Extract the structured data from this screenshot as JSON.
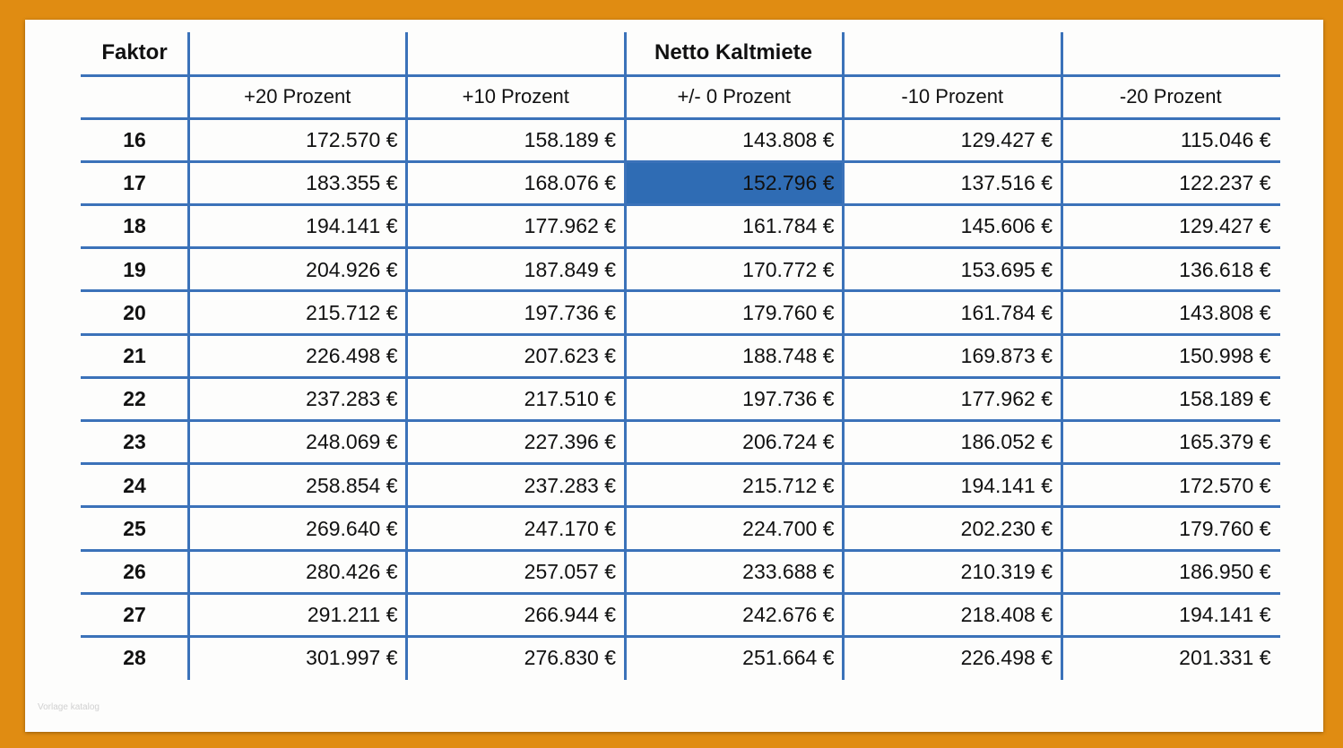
{
  "table": {
    "header_left": "Faktor",
    "header_title": "Netto Kaltmiete",
    "subheaders": [
      "+20 Prozent",
      "+10 Prozent",
      "+/- 0 Prozent",
      "-10 Prozent",
      "-20 Prozent"
    ],
    "rows": [
      {
        "faktor": "16",
        "values": [
          "172.570 €",
          "158.189 €",
          "143.808 €",
          "129.427 €",
          "115.046 €"
        ]
      },
      {
        "faktor": "17",
        "values": [
          "183.355 €",
          "168.076 €",
          "152.796 €",
          "137.516 €",
          "122.237 €"
        ]
      },
      {
        "faktor": "18",
        "values": [
          "194.141 €",
          "177.962 €",
          "161.784 €",
          "145.606 €",
          "129.427 €"
        ]
      },
      {
        "faktor": "19",
        "values": [
          "204.926 €",
          "187.849 €",
          "170.772 €",
          "153.695 €",
          "136.618 €"
        ]
      },
      {
        "faktor": "20",
        "values": [
          "215.712 €",
          "197.736 €",
          "179.760 €",
          "161.784 €",
          "143.808 €"
        ]
      },
      {
        "faktor": "21",
        "values": [
          "226.498 €",
          "207.623 €",
          "188.748 €",
          "169.873 €",
          "150.998 €"
        ]
      },
      {
        "faktor": "22",
        "values": [
          "237.283 €",
          "217.510 €",
          "197.736 €",
          "177.962 €",
          "158.189 €"
        ]
      },
      {
        "faktor": "23",
        "values": [
          "248.069 €",
          "227.396 €",
          "206.724 €",
          "186.052 €",
          "165.379 €"
        ]
      },
      {
        "faktor": "24",
        "values": [
          "258.854 €",
          "237.283 €",
          "215.712 €",
          "194.141 €",
          "172.570 €"
        ]
      },
      {
        "faktor": "25",
        "values": [
          "269.640 €",
          "247.170 €",
          "224.700 €",
          "202.230 €",
          "179.760 €"
        ]
      },
      {
        "faktor": "26",
        "values": [
          "280.426 €",
          "257.057 €",
          "233.688 €",
          "210.319 €",
          "186.950 €"
        ]
      },
      {
        "faktor": "27",
        "values": [
          "291.211 €",
          "266.944 €",
          "242.676 €",
          "218.408 €",
          "194.141 €"
        ]
      },
      {
        "faktor": "28",
        "values": [
          "301.997 €",
          "276.830 €",
          "251.664 €",
          "226.498 €",
          "201.331 €"
        ]
      }
    ],
    "highlighted_cell": {
      "row_faktor": "17",
      "column": "+/- 0 Prozent"
    }
  },
  "colors": {
    "frame": "#e08c12",
    "grid_line": "#3b72b9",
    "highlight": "#2f6cb4"
  },
  "watermark": "Vorlage katalog"
}
